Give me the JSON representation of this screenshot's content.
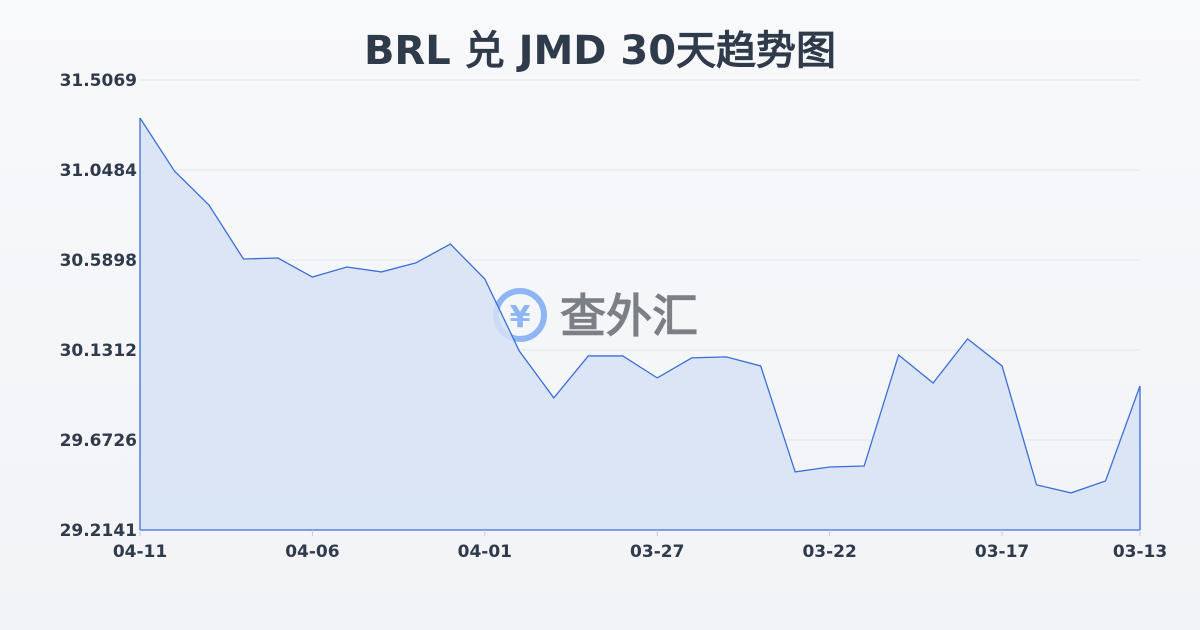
{
  "chart_data": {
    "type": "area",
    "title": "BRL 兑 JMD 30天趋势图",
    "watermark": "查外汇",
    "x": [
      "04-11",
      "04-10",
      "04-09",
      "04-08",
      "04-07",
      "04-06",
      "04-05",
      "04-04",
      "04-03",
      "04-02",
      "04-01",
      "03-31",
      "03-30",
      "03-29",
      "03-28",
      "03-27",
      "03-26",
      "03-25",
      "03-24",
      "03-23",
      "03-22",
      "03-21",
      "03-20",
      "03-19",
      "03-18",
      "03-17",
      "03-16",
      "03-15",
      "03-14",
      "03-13"
    ],
    "values": [
      31.313,
      31.043,
      30.87,
      30.595,
      30.6,
      30.503,
      30.554,
      30.529,
      30.575,
      30.671,
      30.493,
      30.126,
      29.887,
      30.101,
      30.101,
      29.989,
      30.091,
      30.096,
      30.05,
      29.51,
      29.535,
      29.54,
      30.106,
      29.963,
      30.188,
      30.05,
      29.444,
      29.403,
      29.464,
      29.948
    ],
    "x_tick_labels": [
      "04-11",
      "04-06",
      "04-01",
      "03-27",
      "03-22",
      "03-17",
      "03-13"
    ],
    "y_tick_labels": [
      "29.2141",
      "29.6726",
      "30.1312",
      "30.5898",
      "31.0484",
      "31.5069"
    ],
    "ylim": [
      29.2141,
      31.5069
    ],
    "grid": true,
    "colors": {
      "line": "#3a6fd8",
      "fill": "#d6e2f6",
      "grid": "#e3e6ea",
      "text": "#2f3a4b"
    }
  }
}
